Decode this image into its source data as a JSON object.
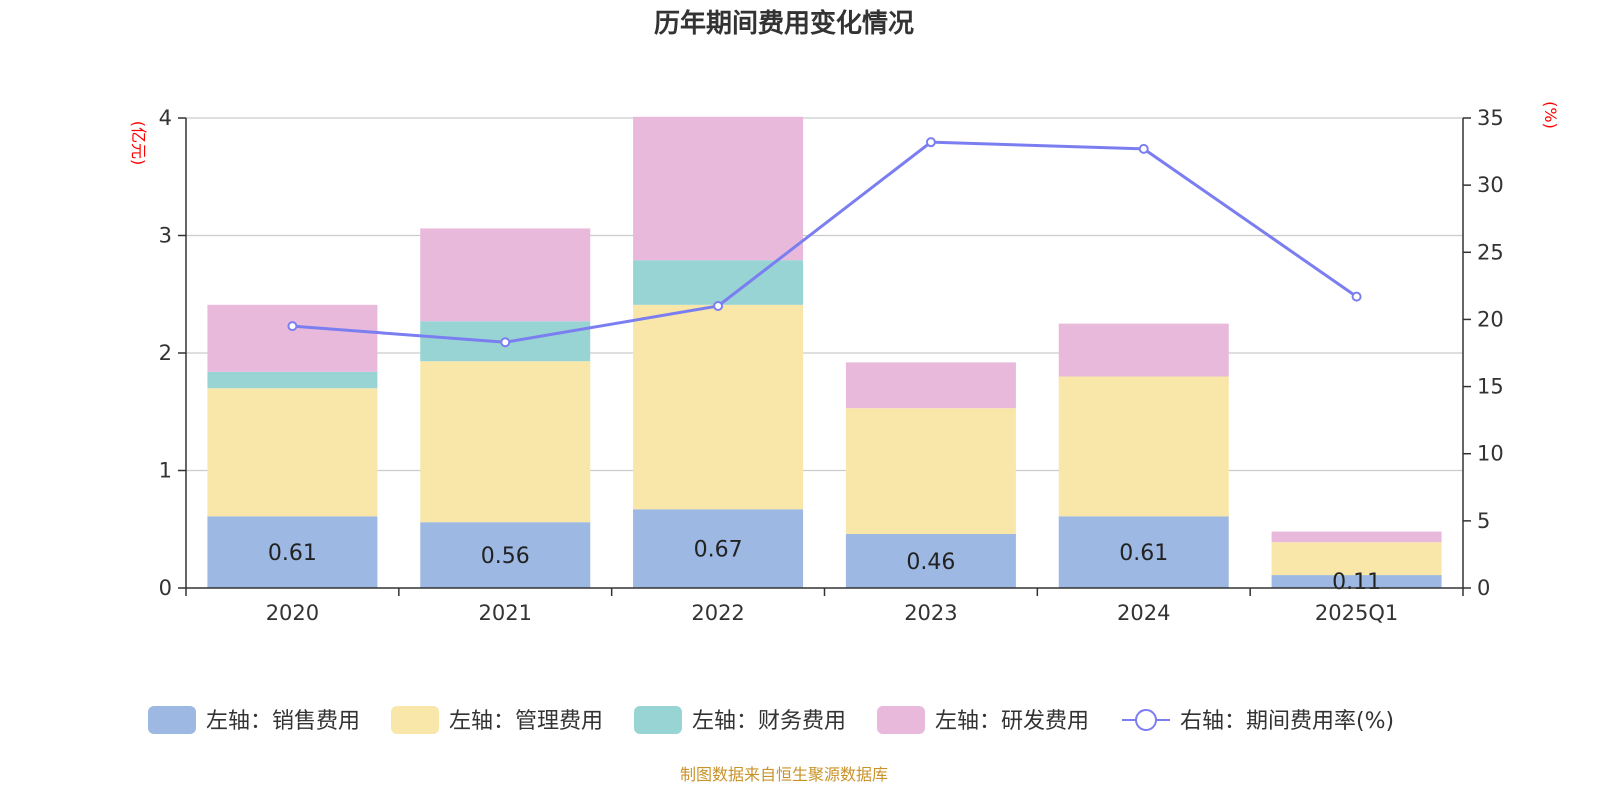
{
  "chart_data": {
    "type": "bar",
    "stacked": true,
    "title": "历年期间费用变化情况",
    "categories": [
      "2020",
      "2021",
      "2022",
      "2023",
      "2024",
      "2025Q1"
    ],
    "left_axis": {
      "unit": "(亿元)",
      "ylim": [
        0,
        4
      ],
      "ticks": [
        "0",
        "1",
        "2",
        "3",
        "4"
      ]
    },
    "right_axis": {
      "unit": "(%)",
      "ylim": [
        0,
        35
      ],
      "ticks": [
        "0",
        "5",
        "10",
        "15",
        "20",
        "25",
        "30",
        "35"
      ]
    },
    "series": [
      {
        "name": "左轴：销售费用",
        "axis": "left",
        "color": "#9db8e2",
        "values": [
          0.61,
          0.56,
          0.67,
          0.46,
          0.61,
          0.11
        ],
        "labels": [
          "0.61",
          "0.56",
          "0.67",
          "0.46",
          "0.61",
          "0.11"
        ]
      },
      {
        "name": "左轴：管理费用",
        "axis": "left",
        "color": "#f8e7a8",
        "values": [
          1.09,
          1.37,
          1.74,
          1.07,
          1.19,
          0.28
        ]
      },
      {
        "name": "左轴：财务费用",
        "axis": "left",
        "color": "#98d4d4",
        "values": [
          0.14,
          0.34,
          0.38,
          0.0,
          0.0,
          0.0
        ]
      },
      {
        "name": "左轴：研发费用",
        "axis": "left",
        "color": "#e8b9da",
        "values": [
          0.57,
          0.79,
          1.22,
          0.39,
          0.45,
          0.09
        ]
      },
      {
        "name": "右轴：期间费用率(%)",
        "axis": "right",
        "type": "line",
        "color": "#7b7ef0",
        "values": [
          19.5,
          18.3,
          21.0,
          33.2,
          32.7,
          21.7
        ]
      }
    ],
    "grid": true,
    "legend_position": "bottom"
  },
  "source_note": "制图数据来自恒生聚源数据库"
}
